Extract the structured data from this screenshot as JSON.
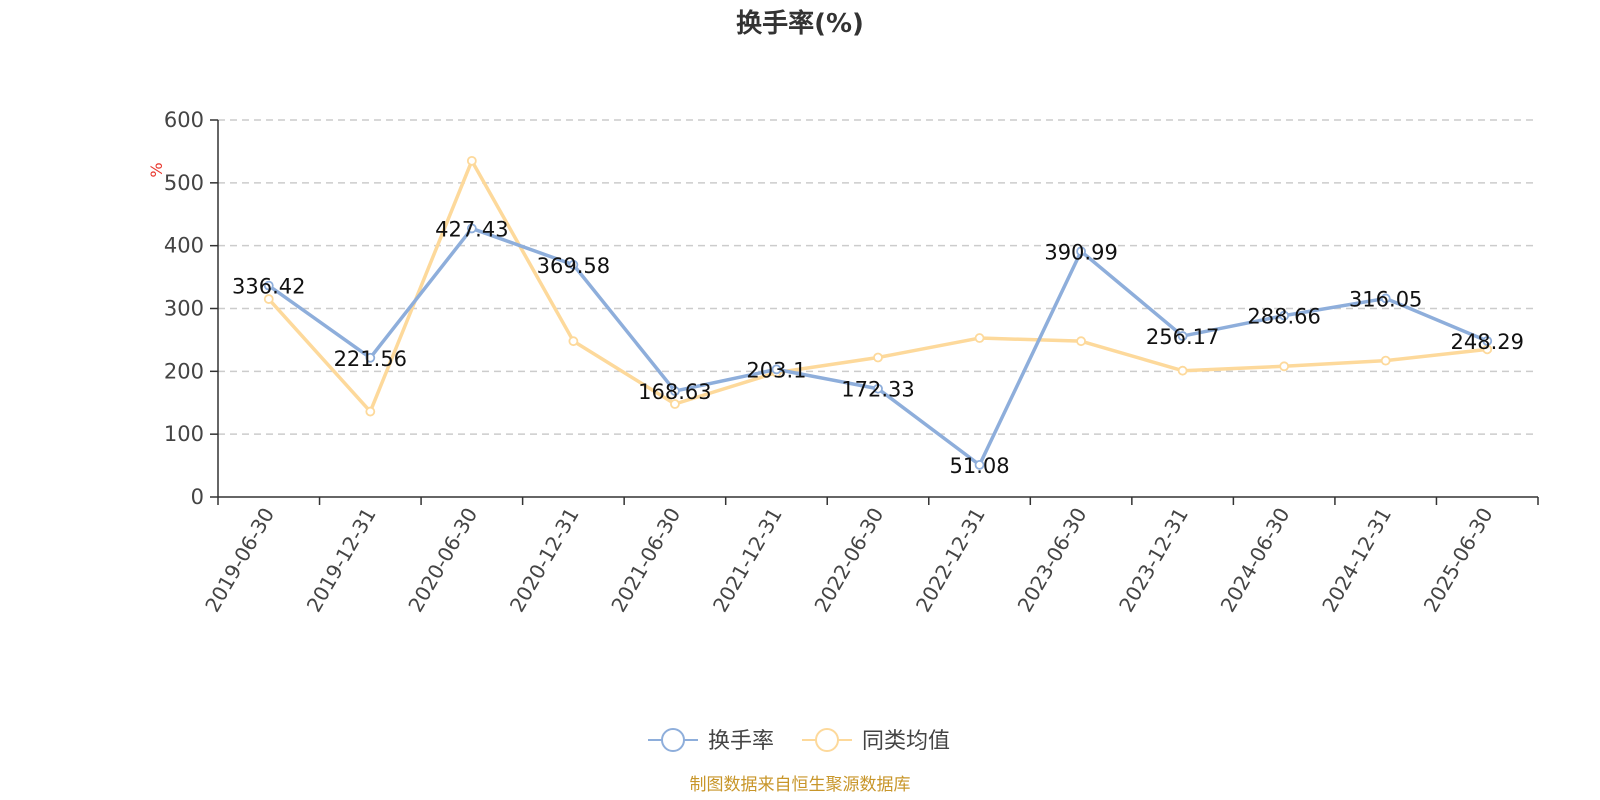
{
  "chart_data": {
    "type": "line",
    "title": "换手率(%)",
    "ylabel": "%",
    "xlabel": "",
    "ylim": [
      0,
      600
    ],
    "yticks": [
      0,
      100,
      200,
      300,
      400,
      500,
      600
    ],
    "categories": [
      "2019-06-30",
      "2019-12-31",
      "2020-06-30",
      "2020-12-31",
      "2021-06-30",
      "2021-12-31",
      "2022-06-30",
      "2022-12-31",
      "2023-06-30",
      "2023-12-31",
      "2024-06-30",
      "2024-12-31",
      "2025-06-30"
    ],
    "series": [
      {
        "name": "换手率",
        "color": "#8eaedb",
        "values": [
          336.42,
          221.56,
          427.43,
          369.58,
          168.63,
          203.1,
          172.33,
          51.08,
          390.99,
          256.17,
          288.66,
          316.05,
          248.29
        ],
        "labels": [
          "336.42",
          "221.56",
          "427.43",
          "369.58",
          "168.63",
          "203.1",
          "172.33",
          "51.08",
          "390.99",
          "256.17",
          "288.66",
          "316.05",
          "248.29"
        ]
      },
      {
        "name": "同类均值",
        "color": "#fdd99b",
        "values": [
          315,
          136,
          535,
          248,
          148,
          198,
          222,
          253,
          248,
          201,
          208,
          217,
          235
        ]
      }
    ],
    "grid": true,
    "legend_position": "bottom"
  },
  "source_text": "制图数据来自恒生聚源数据库",
  "colors": {
    "axis": "#333333",
    "grid": "#cccccc",
    "unit": "#e8352b",
    "source": "#c8962a"
  }
}
